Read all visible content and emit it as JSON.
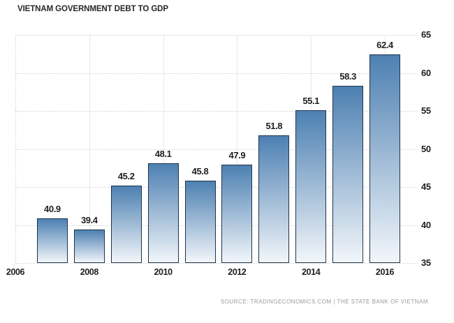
{
  "title": "VIETNAM GOVERNMENT DEBT TO GDP",
  "source": "SOURCE: TRADINGECONOMICS.COM | THE STATE BANK OF VIETNAM",
  "colors": {
    "background": "#ffffff",
    "bar_gradient_top": "#4d80b2",
    "bar_gradient_bottom": "#f2f6fa",
    "bar_border": "#20344a",
    "gridline": "#d4d4d4",
    "axis_text": "#1f1f1f",
    "value_label_text": "#1f1f1f",
    "title_text": "#26262e",
    "source_text": "#999999"
  },
  "chart_data": {
    "type": "bar",
    "title": "VIETNAM GOVERNMENT DEBT TO GDP",
    "x": [
      2007,
      2008,
      2009,
      2010,
      2011,
      2012,
      2013,
      2014,
      2015,
      2016
    ],
    "values": [
      40.9,
      39.4,
      45.2,
      48.1,
      45.8,
      47.9,
      51.8,
      55.1,
      58.3,
      62.4
    ],
    "bar_value_labels": [
      40.9,
      39.4,
      45.2,
      48.1,
      45.8,
      47.9,
      51.8,
      55.1,
      58.3,
      62.4
    ],
    "xlabel": "",
    "ylabel": "",
    "xticks": [
      2006,
      2008,
      2010,
      2012,
      2014,
      2016
    ],
    "ylim": [
      35,
      65
    ],
    "ytick_step": 5,
    "xlim": [
      2006,
      2016.9
    ],
    "grid": true,
    "grid_style": "dotted",
    "legend": false,
    "y_axis_side": "right"
  }
}
